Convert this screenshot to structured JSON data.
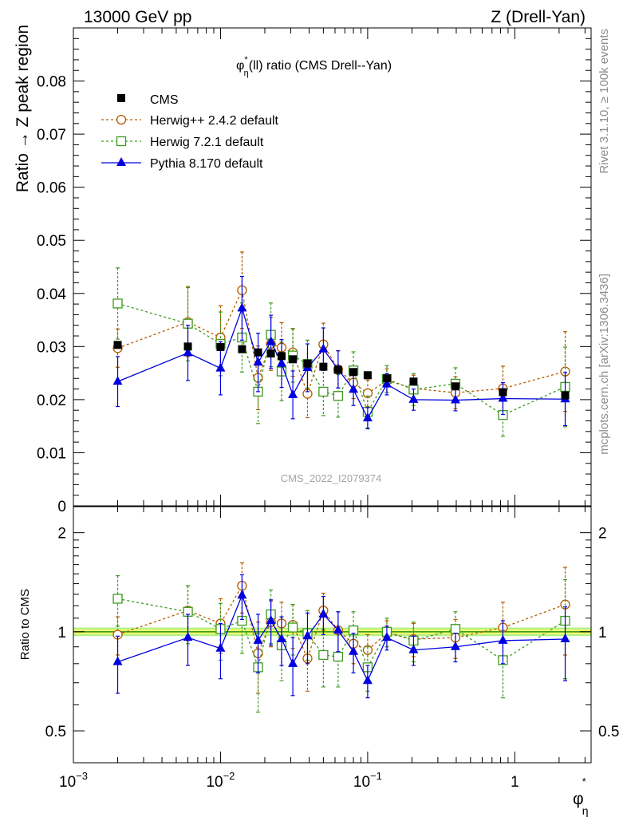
{
  "header": {
    "left": "13000 GeV pp",
    "right": "Z (Drell-Yan)"
  },
  "side": {
    "rivet": "Rivet 3.1.10, ≥ 100k events",
    "mcplots": "mcplots.cern.ch [arXiv:1306.3436]"
  },
  "watermark": "CMS_2022_I2079374",
  "colors": {
    "cms": "#000000",
    "herwigpp": "#b35a00",
    "herwig7": "#3d9a1f",
    "pythia": "#0000e0",
    "band_inner": "#ffff66",
    "band_outer": "#b6f08a",
    "ref_line": "#1e8f1e"
  },
  "chart_data": [
    {
      "type": "line",
      "title": "φη*(ll) ratio (CMS Drell--Yan)",
      "title_parts": {
        "phi": "φ",
        "star": "*",
        "sub": "η",
        "rest": "(ll) ratio (CMS Drell--Yan)"
      },
      "ylabel": "Ratio → Z peak region",
      "xscale": "log",
      "xlim": [
        0.001,
        3.3
      ],
      "ylim": [
        0,
        0.09
      ],
      "yticks": [
        0,
        0.01,
        0.02,
        0.03,
        0.04,
        0.05,
        0.06,
        0.07,
        0.08
      ],
      "ytick_labels": [
        "0",
        "0.01",
        "0.02",
        "0.03",
        "0.04",
        "0.05",
        "0.06",
        "0.07",
        "0.08"
      ],
      "legend_position": "top-left",
      "x": [
        0.002,
        0.006,
        0.01,
        0.014,
        0.018,
        0.022,
        0.026,
        0.031,
        0.039,
        0.05,
        0.063,
        0.08,
        0.1,
        0.135,
        0.205,
        0.395,
        0.83,
        2.2
      ],
      "series": [
        {
          "name": "CMS",
          "key": "cms",
          "style": "square-filled",
          "values": [
            0.0303,
            0.03,
            0.0299,
            0.0295,
            0.0289,
            0.0287,
            0.0282,
            0.0276,
            0.0268,
            0.0262,
            0.0256,
            0.0252,
            0.0246,
            0.024,
            0.0234,
            0.0225,
            0.0214,
            0.0208
          ],
          "errors": [
            0.0003,
            0.0003,
            0.0003,
            0.0003,
            0.0003,
            0.0003,
            0.0003,
            0.0003,
            0.0003,
            0.0003,
            0.0003,
            0.0003,
            0.0003,
            0.0003,
            0.0003,
            0.0003,
            0.0003,
            0.0003
          ]
        },
        {
          "name": "Herwig++ 2.4.2 default",
          "key": "herwigpp",
          "style": "circle-open-dashed",
          "values": [
            0.0297,
            0.0346,
            0.0317,
            0.0406,
            0.0241,
            0.0305,
            0.0298,
            0.0289,
            0.0211,
            0.0304,
            0.0257,
            0.0232,
            0.0212,
            0.0236,
            0.0221,
            0.0213,
            0.0221,
            0.0253
          ],
          "errors": [
            0.0036,
            0.0065,
            0.006,
            0.0072,
            0.006,
            0.005,
            0.0047,
            0.0045,
            0.0045,
            0.004,
            0.0035,
            0.003,
            0.0025,
            0.0022,
            0.0025,
            0.003,
            0.0042,
            0.0075
          ]
        },
        {
          "name": "Herwig 7.2.1 default",
          "key": "herwig7",
          "style": "square-open-dashed",
          "values": [
            0.0381,
            0.0343,
            0.0305,
            0.0317,
            0.0215,
            0.0322,
            0.0253,
            0.0283,
            0.0267,
            0.0215,
            0.0207,
            0.0255,
            0.0177,
            0.0239,
            0.0219,
            0.023,
            0.0171,
            0.0224
          ],
          "errors": [
            0.0067,
            0.007,
            0.006,
            0.0065,
            0.006,
            0.006,
            0.0055,
            0.005,
            0.0045,
            0.0045,
            0.004,
            0.0035,
            0.003,
            0.0025,
            0.003,
            0.003,
            0.004,
            0.0075
          ]
        },
        {
          "name": "Pythia 8.170 default",
          "key": "pythia",
          "style": "triangle-filled-solid",
          "values": [
            0.0234,
            0.0288,
            0.0259,
            0.0372,
            0.027,
            0.0309,
            0.0268,
            0.0209,
            0.026,
            0.0295,
            0.0257,
            0.0219,
            0.0165,
            0.0229,
            0.02,
            0.0199,
            0.0202,
            0.0201
          ],
          "errors": [
            0.0047,
            0.0052,
            0.005,
            0.006,
            0.0055,
            0.005,
            0.0045,
            0.0045,
            0.0045,
            0.004,
            0.0035,
            0.003,
            0.002,
            0.002,
            0.002,
            0.002,
            0.003,
            0.005
          ]
        }
      ]
    },
    {
      "type": "line",
      "ylabel": "Ratio to CMS",
      "xlabel": "φη*",
      "xlabel_parts": {
        "phi": "φ",
        "star": "*",
        "sub": "η"
      },
      "xscale": "log",
      "xlim": [
        0.001,
        3.3
      ],
      "xticks": [
        0.001,
        0.01,
        0.1,
        1
      ],
      "xtick_labels": [
        {
          "base": "10",
          "exp": "−3"
        },
        {
          "base": "10",
          "exp": "−2"
        },
        {
          "base": "10",
          "exp": "−1"
        },
        {
          "base": "1",
          "exp": ""
        }
      ],
      "yscale": "log",
      "ylim": [
        0.4,
        2.4
      ],
      "yticks": [
        0.5,
        1,
        2
      ],
      "ytick_labels": [
        "0.5",
        "1",
        "2"
      ],
      "reference_band": [
        0.985,
        1.015
      ],
      "x": [
        0.002,
        0.006,
        0.01,
        0.014,
        0.018,
        0.022,
        0.026,
        0.031,
        0.039,
        0.05,
        0.063,
        0.08,
        0.1,
        0.135,
        0.205,
        0.395,
        0.83,
        2.2
      ],
      "series": [
        {
          "name": "Herwig++ 2.4.2 default",
          "key": "herwigpp",
          "style": "circle-open-dashed",
          "values": [
            0.98,
            1.16,
            1.06,
            1.38,
            0.86,
            1.07,
            1.06,
            1.05,
            0.83,
            1.16,
            1.01,
            0.92,
            0.88,
            0.99,
            0.95,
            0.96,
            1.03,
            1.21
          ],
          "errors": [
            0.13,
            0.22,
            0.2,
            0.24,
            0.21,
            0.17,
            0.17,
            0.16,
            0.17,
            0.15,
            0.14,
            0.12,
            0.1,
            0.09,
            0.11,
            0.13,
            0.2,
            0.36
          ]
        },
        {
          "name": "Herwig 7.2.1 default",
          "key": "herwig7",
          "style": "square-open-dashed",
          "values": [
            1.26,
            1.15,
            1.02,
            1.08,
            0.78,
            1.13,
            0.91,
            1.03,
            0.99,
            0.85,
            0.84,
            1.01,
            0.78,
            1.0,
            0.94,
            1.02,
            0.82,
            1.08
          ],
          "errors": [
            0.22,
            0.23,
            0.2,
            0.22,
            0.21,
            0.21,
            0.2,
            0.18,
            0.17,
            0.17,
            0.16,
            0.14,
            0.12,
            0.1,
            0.13,
            0.13,
            0.19,
            0.36
          ]
        },
        {
          "name": "Pythia 8.170 default",
          "key": "pythia",
          "style": "triangle-filled-solid",
          "values": [
            0.81,
            0.96,
            0.89,
            1.29,
            0.94,
            1.08,
            0.95,
            0.8,
            0.97,
            1.13,
            1.01,
            0.87,
            0.71,
            0.96,
            0.88,
            0.9,
            0.94,
            0.95
          ],
          "errors": [
            0.16,
            0.17,
            0.17,
            0.2,
            0.19,
            0.17,
            0.16,
            0.16,
            0.17,
            0.15,
            0.14,
            0.12,
            0.08,
            0.08,
            0.09,
            0.09,
            0.14,
            0.24
          ]
        }
      ]
    }
  ]
}
